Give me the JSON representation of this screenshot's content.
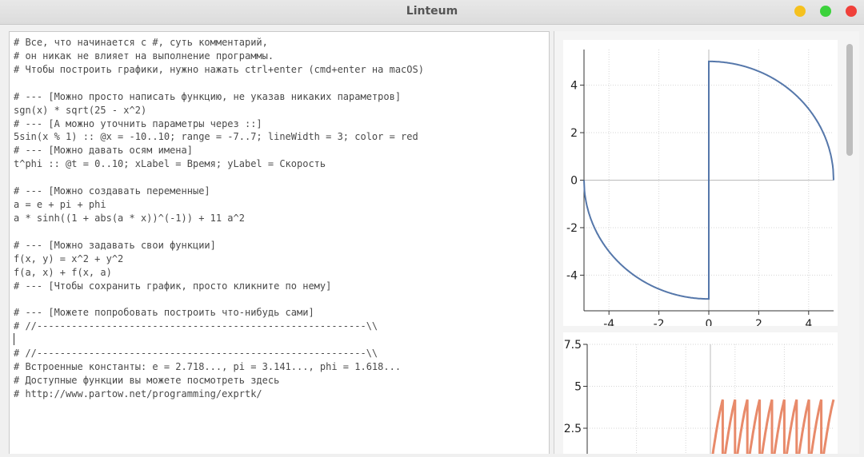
{
  "window": {
    "title": "Linteum"
  },
  "editor": {
    "lines": [
      "# Все, что начинается с #, суть комментарий,",
      "# он никак не влияет на выполнение программы.",
      "# Чтобы построить графики, нужно нажать ctrl+enter (cmd+enter на macOS)",
      "",
      "# --- [Можно просто написать функцию, не указав никаких параметров]",
      "sgn(x) * sqrt(25 - x^2)",
      "# --- [А можно уточнить параметры через ::]",
      "5sin(x % 1) :: @x = -10..10; range = -7..7; lineWidth = 3; color = red",
      "# --- [Можно давать осям имена]",
      "t^phi :: @t = 0..10; xLabel = Время; yLabel = Скорость",
      "",
      "# --- [Можно создавать переменные]",
      "a = e + pi + phi",
      "a * sinh((1 + abs(a * x))^(-1)) + 11 a^2",
      "",
      "# --- [Можно задавать свои функции]",
      "f(x, y) = x^2 + y^2",
      "f(a, x) + f(x, a)",
      "# --- [Чтобы сохранить график, просто кликните по нему]",
      "",
      "# --- [Можете попробовать построить что-нибудь сами]",
      "# //---------------------------------------------------------\\\\",
      "",
      "# //---------------------------------------------------------\\\\",
      "# Встроенные константы: e = 2.718..., pi = 3.141..., phi = 1.618...",
      "# Доступные функции вы можете посмотреть здесь",
      "# http://www.partow.net/programming/exprtk/"
    ],
    "caret_line": 22
  },
  "chart_data": [
    {
      "type": "line",
      "expression": "sgn(x) * sqrt(25 - x^2)",
      "xlim": [
        -5,
        5
      ],
      "ylim": [
        -5.5,
        5.5
      ],
      "xticks": [
        -4,
        -2,
        0,
        2,
        4
      ],
      "yticks": [
        -4,
        -2,
        0,
        2,
        4
      ],
      "grid": true,
      "color": "#5577aa",
      "series": [
        {
          "x": [
            -5,
            -4.9,
            -4.5,
            -4,
            -3,
            -2,
            -1,
            0,
            0,
            1,
            2,
            3,
            4,
            4.5,
            4.9,
            5
          ],
          "y": [
            0,
            -0.99,
            -2.18,
            -3,
            -4,
            -4.58,
            -4.9,
            -5,
            5,
            4.9,
            4.58,
            4,
            3,
            2.18,
            0.99,
            0
          ]
        }
      ]
    },
    {
      "type": "line",
      "expression": "5sin(x % 1)",
      "xlim": [
        -10,
        10
      ],
      "ylim_visible": [
        1.5,
        7.5
      ],
      "yticks": [
        2.5,
        5,
        7.5
      ],
      "grid": true,
      "color": "#e88a6a",
      "series": [
        {
          "x": [
            0,
            1,
            1,
            2,
            2,
            3,
            3,
            4,
            4,
            5,
            5,
            6,
            6,
            7,
            7,
            8,
            8,
            9,
            9,
            10
          ],
          "y": [
            0,
            4.21,
            0,
            4.21,
            0,
            4.21,
            0,
            4.21,
            0,
            4.21,
            0,
            4.21,
            0,
            4.21,
            0,
            4.21,
            0,
            4.21,
            0,
            4.21
          ]
        }
      ]
    }
  ]
}
